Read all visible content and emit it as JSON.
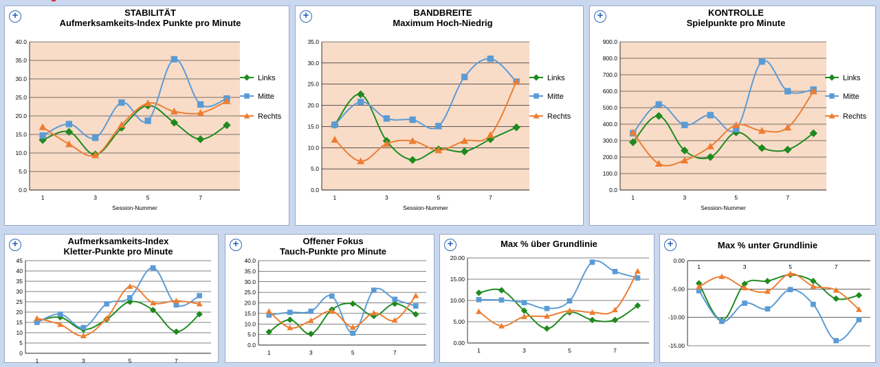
{
  "colors": {
    "links": "#1f8a1f",
    "mitte": "#5b9bd5",
    "rechts": "#ed7d31",
    "plot_bg": "#f8dcc8",
    "accent": "#2a66b8"
  },
  "expand_label": "+",
  "charts": [
    {
      "title_lines": [
        "STABILITÄT",
        "Aufmerksamkeits-Index  Punkte pro Minute"
      ],
      "xlabel": "Session-Nummer",
      "y_ticks": [
        "0.0",
        "5.0",
        "10.0",
        "15.0",
        "20.0",
        "25.0",
        "30.0",
        "35.0",
        "40.0"
      ],
      "x_ticks": [
        "1",
        "3",
        "5",
        "7"
      ],
      "legend": [
        "Links",
        "Mitte",
        "Rechts"
      ]
    },
    {
      "title_lines": [
        "BANDBREITE",
        "Maximum Hoch-Niedrig"
      ],
      "xlabel": "Session-Nummer",
      "y_ticks": [
        "0.0",
        "5.0",
        "10.0",
        "15.0",
        "20.0",
        "25.0",
        "30.0",
        "35.0"
      ],
      "x_ticks": [
        "1",
        "3",
        "5",
        "7"
      ],
      "legend": [
        "Links",
        "Mitte",
        "Rechts"
      ]
    },
    {
      "title_lines": [
        "KONTROLLE",
        "Spielpunkte pro Minute"
      ],
      "xlabel": "Session-Nummer",
      "y_ticks": [
        "0.0",
        "100.0",
        "200.0",
        "300.0",
        "400.0",
        "500.0",
        "600.0",
        "700.0",
        "800.0",
        "900.0"
      ],
      "x_ticks": [
        "1",
        "3",
        "5",
        "7"
      ],
      "legend": [
        "Links",
        "Mitte",
        "Rechts"
      ]
    },
    {
      "title_lines": [
        "Aufmerksamkeits-Index",
        "Kletter-Punkte pro Minute"
      ],
      "xlabel": "",
      "y_ticks": [
        "0",
        "5",
        "10",
        "15",
        "20",
        "25",
        "30",
        "35",
        "40",
        "45"
      ],
      "x_ticks": [
        "1",
        "3",
        "5",
        "7"
      ],
      "legend": []
    },
    {
      "title_lines": [
        "Offener Fokus",
        "Tauch-Punkte pro Minute"
      ],
      "xlabel": "",
      "y_ticks": [
        "0.0",
        "5.0",
        "10.0",
        "15.0",
        "20.0",
        "25.0",
        "30.0",
        "35.0",
        "40.0"
      ],
      "x_ticks": [
        "1",
        "3",
        "5",
        "7"
      ],
      "legend": []
    },
    {
      "title_lines": [
        "Max % über Grundlinie"
      ],
      "xlabel": "",
      "y_ticks": [
        "0.00",
        "5.00",
        "10.00",
        "15.00",
        "20.00"
      ],
      "x_ticks": [
        "1",
        "3",
        "5",
        "7"
      ],
      "legend": []
    },
    {
      "title_lines": [
        "Max % unter Grundlinie"
      ],
      "xlabel": "",
      "y_ticks": [
        "0.00",
        "-5.00",
        "-10.00",
        "-15.00"
      ],
      "x_ticks": [
        "1",
        "3",
        "5",
        "7"
      ],
      "legend": []
    }
  ],
  "chart_data": [
    {
      "type": "line",
      "title": "STABILITÄT Aufmerksamkeits-Index  Punkte pro Minute",
      "xlabel": "Session-Nummer",
      "ylabel": "",
      "x": [
        1,
        2,
        3,
        4,
        5,
        6,
        7,
        8
      ],
      "ylim": [
        0,
        40
      ],
      "grid": true,
      "legend": "right",
      "series": [
        {
          "name": "Links",
          "values": [
            13.5,
            15.7,
            9.6,
            16.8,
            22.8,
            18.2,
            13.7,
            17.5
          ]
        },
        {
          "name": "Mitte",
          "values": [
            14.7,
            17.8,
            14.1,
            23.6,
            18.7,
            35.3,
            23.1,
            24.7
          ]
        },
        {
          "name": "Rechts",
          "values": [
            17.0,
            12.4,
            9.4,
            17.6,
            23.4,
            21.2,
            20.8,
            24.0
          ]
        }
      ]
    },
    {
      "type": "line",
      "title": "BANDBREITE Maximum Hoch-Niedrig",
      "xlabel": "Session-Nummer",
      "ylabel": "",
      "x": [
        1,
        2,
        3,
        4,
        5,
        6,
        7,
        8
      ],
      "ylim": [
        0,
        35
      ],
      "grid": true,
      "legend": "right",
      "series": [
        {
          "name": "Links",
          "values": [
            15.4,
            22.6,
            11.6,
            7.1,
            9.6,
            9.1,
            12.0,
            14.8
          ]
        },
        {
          "name": "Mitte",
          "values": [
            15.4,
            20.8,
            16.9,
            16.6,
            15.1,
            26.7,
            31.0,
            25.6
          ]
        },
        {
          "name": "Rechts",
          "values": [
            11.9,
            6.8,
            10.9,
            11.6,
            9.4,
            11.6,
            13.0,
            25.6
          ]
        }
      ]
    },
    {
      "type": "line",
      "title": "KONTROLLE Spielpunkte pro Minute",
      "xlabel": "Session-Nummer",
      "ylabel": "",
      "x": [
        1,
        2,
        3,
        4,
        5,
        6,
        7,
        8
      ],
      "ylim": [
        0,
        900
      ],
      "grid": true,
      "legend": "right",
      "series": [
        {
          "name": "Links",
          "values": [
            290,
            450,
            240,
            200,
            350,
            255,
            245,
            345
          ]
        },
        {
          "name": "Mitte",
          "values": [
            345,
            520,
            395,
            455,
            370,
            780,
            600,
            610
          ]
        },
        {
          "name": "Rechts",
          "values": [
            350,
            160,
            180,
            265,
            395,
            360,
            380,
            600
          ]
        }
      ]
    },
    {
      "type": "line",
      "title": "Aufmerksamkeits-Index Kletter-Punkte pro Minute",
      "xlabel": "",
      "ylabel": "",
      "x": [
        1,
        2,
        3,
        4,
        5,
        6,
        7,
        8
      ],
      "ylim": [
        0,
        45
      ],
      "grid": true,
      "series": [
        {
          "name": "Links",
          "values": [
            15.5,
            17.5,
            11.5,
            16.5,
            25.0,
            21.0,
            10.5,
            19.0
          ]
        },
        {
          "name": "Mitte",
          "values": [
            15.0,
            19.0,
            12.5,
            24.0,
            27.0,
            41.5,
            23.5,
            28.0
          ]
        },
        {
          "name": "Rechts",
          "values": [
            17.0,
            14.0,
            8.5,
            17.0,
            32.5,
            24.5,
            25.5,
            24.0
          ]
        }
      ]
    },
    {
      "type": "line",
      "title": "Offener Fokus Tauch-Punkte pro Minute",
      "xlabel": "",
      "ylabel": "",
      "x": [
        1,
        2,
        3,
        4,
        5,
        6,
        7,
        8
      ],
      "ylim": [
        0,
        40
      ],
      "grid": true,
      "series": [
        {
          "name": "Links",
          "values": [
            6.2,
            12.0,
            5.3,
            16.8,
            19.6,
            13.8,
            19.6,
            14.6
          ]
        },
        {
          "name": "Mitte",
          "values": [
            14.2,
            15.5,
            16.0,
            23.2,
            5.6,
            26.0,
            21.7,
            18.5
          ]
        },
        {
          "name": "Rechts",
          "values": [
            16.0,
            8.2,
            11.6,
            16.0,
            8.4,
            15.2,
            11.8,
            23.4
          ]
        }
      ]
    },
    {
      "type": "line",
      "title": "Max % über Grundlinie",
      "xlabel": "",
      "ylabel": "",
      "x": [
        1,
        2,
        3,
        4,
        5,
        6,
        7,
        8
      ],
      "ylim": [
        0,
        20
      ],
      "grid": true,
      "series": [
        {
          "name": "Links",
          "values": [
            11.8,
            12.4,
            7.6,
            3.4,
            7.2,
            5.4,
            5.4,
            8.8
          ]
        },
        {
          "name": "Mitte",
          "values": [
            10.2,
            10.1,
            9.5,
            8.1,
            9.9,
            19.0,
            16.8,
            15.3
          ]
        },
        {
          "name": "Rechts",
          "values": [
            7.4,
            4.0,
            6.2,
            6.3,
            7.6,
            7.2,
            7.8,
            16.9
          ]
        }
      ]
    },
    {
      "type": "line",
      "title": "Max % unter Grundlinie",
      "xlabel": "",
      "ylabel": "",
      "x": [
        1,
        2,
        3,
        4,
        5,
        6,
        7,
        8
      ],
      "ylim": [
        -15,
        0
      ],
      "grid": true,
      "series": [
        {
          "name": "Links",
          "values": [
            -4.0,
            -10.5,
            -4.1,
            -3.6,
            -2.5,
            -3.6,
            -6.7,
            -6.1
          ]
        },
        {
          "name": "Mitte",
          "values": [
            -5.3,
            -10.7,
            -7.5,
            -8.5,
            -5.1,
            -7.7,
            -14.1,
            -10.4
          ]
        },
        {
          "name": "Rechts",
          "values": [
            -4.6,
            -2.8,
            -4.8,
            -5.4,
            -2.3,
            -4.5,
            -5.2,
            -8.6
          ]
        }
      ]
    }
  ]
}
